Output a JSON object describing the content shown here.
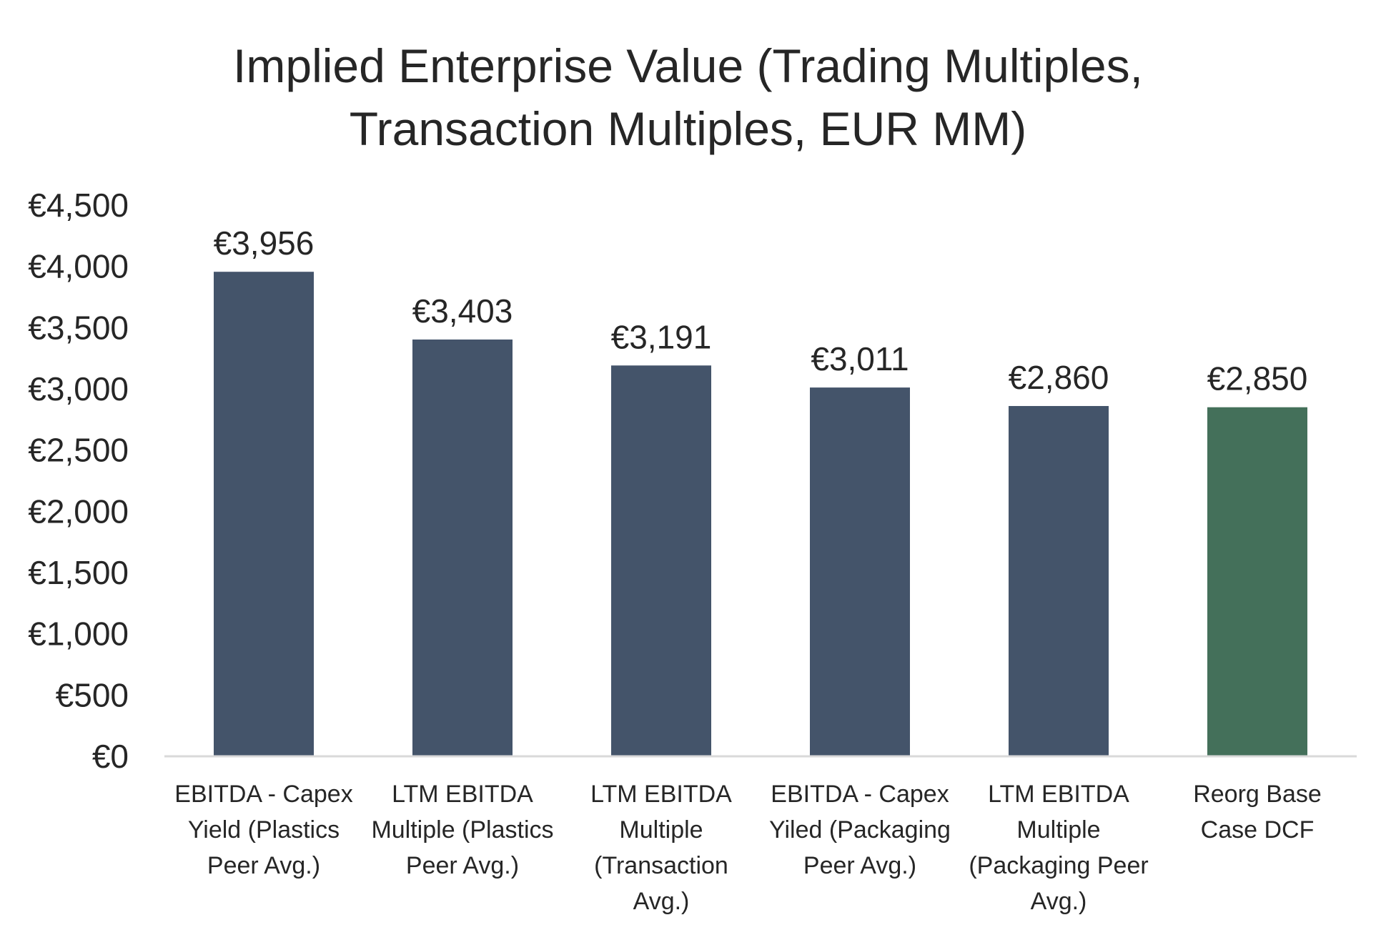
{
  "chart_data": {
    "type": "bar",
    "title_lines": [
      "Implied Enterprise Value (Trading Multiples,",
      "Transaction Multiples, EUR MM)"
    ],
    "categories": [
      [
        "EBITDA - Capex",
        "Yield (Plastics",
        "Peer Avg.)"
      ],
      [
        "LTM EBITDA",
        "Multiple (Plastics",
        "Peer Avg.)"
      ],
      [
        "LTM EBITDA",
        "Multiple",
        "(Transaction",
        "Avg.)"
      ],
      [
        "EBITDA - Capex",
        "Yiled (Packaging",
        "Peer Avg.)"
      ],
      [
        "LTM EBITDA",
        "Multiple",
        "(Packaging Peer",
        "Avg.)"
      ],
      [
        "Reorg Base",
        "Case DCF"
      ]
    ],
    "values": [
      3956,
      3403,
      3191,
      3011,
      2860,
      2850
    ],
    "data_labels": [
      "€3,956",
      "€3,403",
      "€3,191",
      "€3,011",
      "€2,860",
      "€2,850"
    ],
    "bar_colors": [
      "#44546a",
      "#44546a",
      "#44546a",
      "#44546a",
      "#44546a",
      "#44705a"
    ],
    "ylim": [
      0,
      4500
    ],
    "yticks": [
      0,
      500,
      1000,
      1500,
      2000,
      2500,
      3000,
      3500,
      4000,
      4500
    ],
    "ytick_labels": [
      "€0",
      "€500",
      "€1,000",
      "€1,500",
      "€2,000",
      "€2,500",
      "€3,000",
      "€3,500",
      "€4,000",
      "€4,500"
    ],
    "grid": false,
    "legend": "none",
    "axis_color": "#d9d9d9"
  }
}
